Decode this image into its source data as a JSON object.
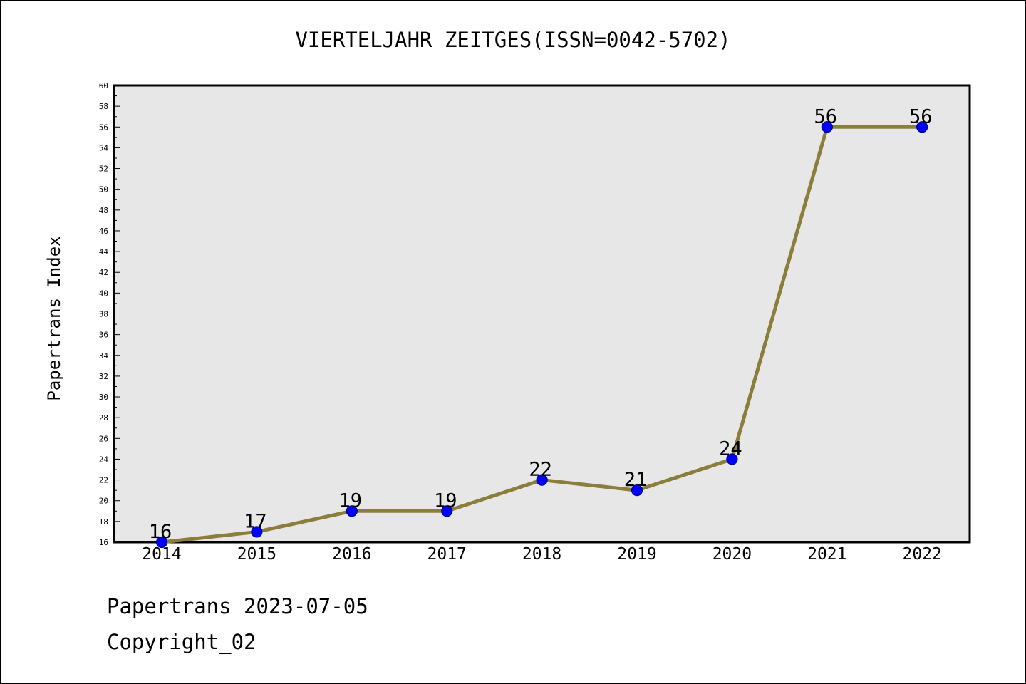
{
  "chart_data": {
    "type": "line",
    "title": "VIERTELJAHR ZEITGES(ISSN=0042-5702)",
    "xlabel": "",
    "ylabel": "Papertrans Index",
    "categories": [
      "2014",
      "2015",
      "2016",
      "2017",
      "2018",
      "2019",
      "2020",
      "2021",
      "2022"
    ],
    "series": [
      {
        "values": [
          16,
          17,
          19,
          19,
          22,
          21,
          24,
          56,
          56
        ]
      }
    ],
    "data_labels": [
      "16",
      "17",
      "19",
      "19",
      "22",
      "21",
      "24",
      "56",
      "56"
    ],
    "ylim": [
      16,
      60
    ],
    "y_ticks": [
      "16",
      "18",
      "20",
      "22",
      "24",
      "26",
      "28",
      "30",
      "32",
      "34",
      "36",
      "38",
      "40",
      "42",
      "44",
      "46",
      "48",
      "50",
      "52",
      "54",
      "56",
      "58",
      "60"
    ],
    "grid": false,
    "legend": "none",
    "colors": {
      "line": "#8B7D3A",
      "marker_fill": "#0000FF",
      "marker_edge": "#00008B",
      "plot_background": "#E7E7E7",
      "axes": "#000000"
    }
  },
  "footer": {
    "line1": "Papertrans 2023-07-05",
    "line2": "Copyright_02"
  }
}
